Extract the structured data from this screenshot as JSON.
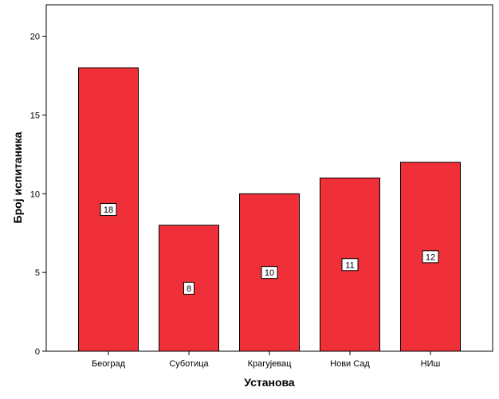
{
  "chart_data": {
    "type": "bar",
    "categories": [
      "Београд",
      "Суботица",
      "Крагујевац",
      "Нови Сад",
      "НИш"
    ],
    "values": [
      18,
      8,
      10,
      11,
      12
    ],
    "xlabel": "Установа",
    "ylabel": "Број испитаника",
    "ylim": [
      0,
      22
    ],
    "yticks": [
      0,
      5,
      10,
      15,
      20
    ],
    "grid": false,
    "bar_color": "#f03038",
    "bar_edge_color": "#000000",
    "data_labels": true
  }
}
